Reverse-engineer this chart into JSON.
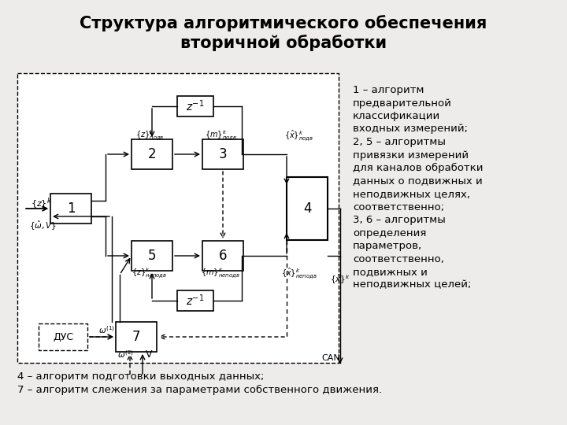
{
  "title": "Структура алгоритмического обеспечения\nвторичной обработки",
  "bg_color": "#edecea",
  "diagram_bg": "#f5f4f2",
  "right_text": "1 – алгоритм\nпредварительной\nклассификации\nвходных измерений;\n2, 5 – алгоритмы\nпривязки измерений\nдля каналов обработки\nданных о подвижных и\nнеподвижных целях,\nсоответственно;\n3, 6 – алгоритмы\nопределения\nпараметров,\nсоответственно,\nподвижных и\nнеподвижных целей;",
  "bottom_text1": "4 – алгоритм подготовки выходных данных;",
  "bottom_text2": "7 – алгоритм слежения за параметрами собственного движения."
}
